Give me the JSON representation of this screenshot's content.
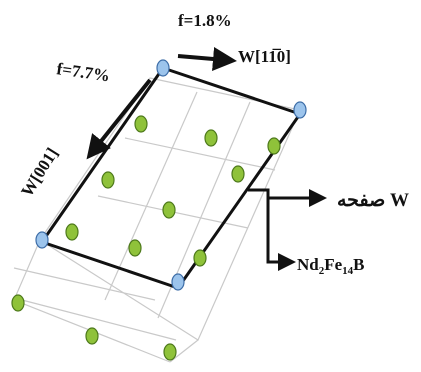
{
  "labels": {
    "strain_w1": "f=1.8%",
    "strain_w2": "f=7.7%",
    "dir_w1": "W[11̅0]",
    "dir_w2": "W[001]",
    "plane": "صفحه W",
    "compound": "Nd2Fe14B"
  },
  "compound_parts": {
    "base1": "Nd",
    "sub1": "2",
    "base2": "Fe",
    "sub2": "14",
    "base3": "B"
  },
  "colors": {
    "green_atom": "#8fc23a",
    "green_atom_edge": "#4e7a1c",
    "blue_atom": "#9cc4ec",
    "blue_atom_edge": "#3e6ea8",
    "cell_outline": "#111111",
    "grid_line": "#c8c8c8"
  }
}
